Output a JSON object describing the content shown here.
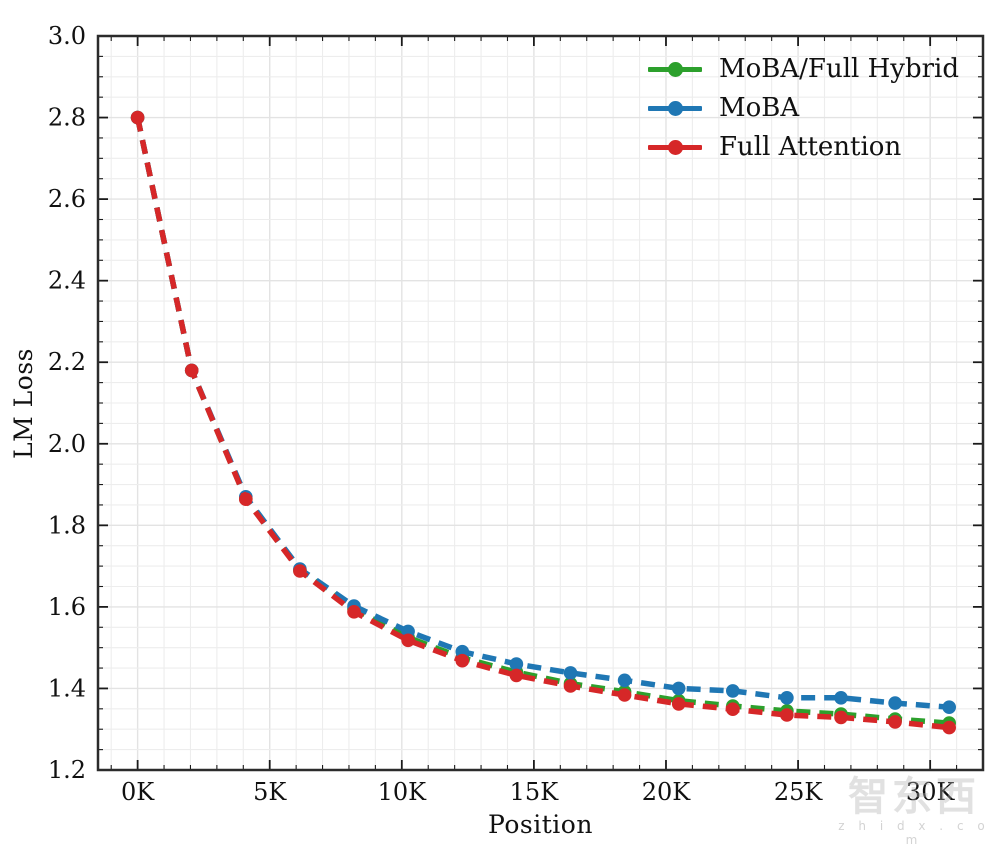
{
  "page": {
    "background": "#ffffff"
  },
  "chart_data": {
    "type": "line",
    "title": "",
    "xlabel": "Position",
    "ylabel": "LM Loss",
    "xlim": [
      -1.5,
      32.0
    ],
    "ylim": [
      1.2,
      3.0
    ],
    "grid": "minor-on",
    "legend_position": "upper right",
    "line_style": "dashed with circle markers",
    "x": [
      0,
      2.048,
      4.096,
      6.144,
      8.192,
      10.24,
      12.288,
      14.336,
      16.384,
      18.432,
      20.48,
      22.528,
      24.576,
      26.624,
      28.672,
      30.72
    ],
    "xticks": {
      "values": [
        0,
        5,
        10,
        15,
        20,
        25,
        30
      ],
      "labels": [
        "0K",
        "5K",
        "10K",
        "15K",
        "20K",
        "25K",
        "30K"
      ]
    },
    "yticks": {
      "values": [
        1.2,
        1.4,
        1.6,
        1.8,
        2.0,
        2.2,
        2.4,
        2.6,
        2.8,
        3.0
      ],
      "labels": [
        "1.2",
        "1.4",
        "1.6",
        "1.8",
        "2.0",
        "2.2",
        "2.4",
        "2.6",
        "2.8",
        "3.0"
      ]
    },
    "x_minor_step": 1,
    "y_minor_step": 0.05,
    "series": [
      {
        "name": "MoBA/Full Hybrid",
        "color": "#2ca02c",
        "values": [
          2.8,
          2.18,
          1.865,
          1.69,
          1.595,
          1.525,
          1.475,
          1.44,
          1.412,
          1.392,
          1.37,
          1.357,
          1.345,
          1.337,
          1.325,
          1.315
        ]
      },
      {
        "name": "MoBA",
        "color": "#1f77b4",
        "values": [
          2.8,
          2.18,
          1.87,
          1.693,
          1.602,
          1.54,
          1.49,
          1.46,
          1.438,
          1.42,
          1.4,
          1.394,
          1.377,
          1.377,
          1.364,
          1.354
        ]
      },
      {
        "name": "Full Attention",
        "color": "#d62728",
        "values": [
          2.8,
          2.18,
          1.864,
          1.688,
          1.588,
          1.518,
          1.468,
          1.432,
          1.406,
          1.384,
          1.362,
          1.349,
          1.335,
          1.329,
          1.318,
          1.304
        ]
      }
    ]
  },
  "watermark": {
    "logo_text": "智东西",
    "domain": "z h i d x . c o m"
  }
}
